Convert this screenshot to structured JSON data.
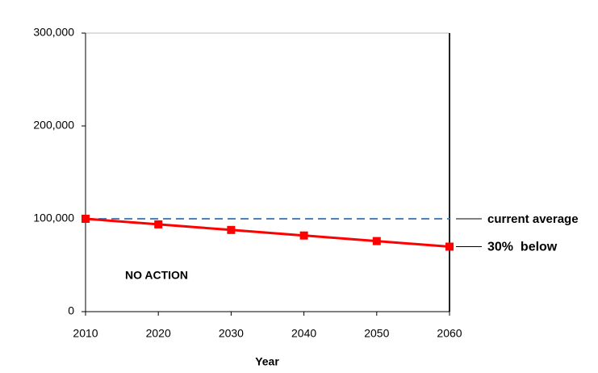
{
  "chart_data": {
    "type": "line",
    "x_label": "Year",
    "annotation": "NO ACTION",
    "x": [
      2010,
      2020,
      2030,
      2040,
      2050,
      2060
    ],
    "series": [
      {
        "name": "current average",
        "color": "#4f81bd",
        "dashed": true,
        "markers": false,
        "values": [
          100000,
          100000,
          100000,
          100000,
          100000,
          100000
        ]
      },
      {
        "name": "30%  below",
        "color": "#ff0000",
        "dashed": false,
        "markers": true,
        "values": [
          100000,
          94000,
          88000,
          82000,
          76000,
          70000
        ]
      }
    ],
    "xlim": [
      2010,
      2060
    ],
    "xticks": [
      2010,
      2020,
      2030,
      2040,
      2050,
      2060
    ],
    "ylim": [
      0,
      300000
    ],
    "yticks": [
      0,
      {
        "value": 100000,
        "label": "100,000"
      },
      {
        "value": 200000,
        "label": "200,000"
      },
      {
        "value": 300000,
        "label": "300,000"
      }
    ],
    "grid": false
  }
}
